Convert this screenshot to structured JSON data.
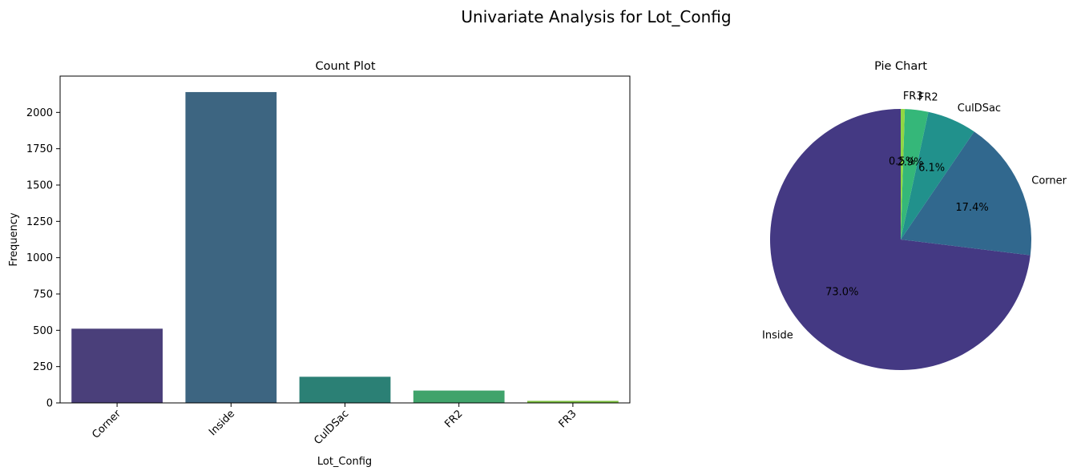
{
  "figure": {
    "suptitle": "Univariate Analysis for Lot_Config"
  },
  "chart_data": [
    {
      "type": "bar",
      "title": "Count Plot",
      "xlabel": "Lot_Config",
      "ylabel": "Frequency",
      "categories": [
        "Corner",
        "Inside",
        "CulDSac",
        "FR2",
        "FR3"
      ],
      "values": [
        511,
        2140,
        180,
        85,
        14
      ],
      "colors": [
        "#4a3f7a",
        "#3d6581",
        "#2b8075",
        "#40a36b",
        "#7cc03e"
      ],
      "ylim": [
        0,
        2250
      ],
      "yticks": [
        0,
        250,
        500,
        750,
        1000,
        1250,
        1500,
        1750,
        2000
      ],
      "xtick_rotation": 45,
      "grid": false
    },
    {
      "type": "pie",
      "title": "Pie Chart",
      "categories": [
        "Inside",
        "Corner",
        "CulDSac",
        "FR2",
        "FR3"
      ],
      "values": [
        73.0,
        17.4,
        6.1,
        2.9,
        0.5
      ],
      "labels": [
        "73.0%",
        "17.4%",
        "6.1%",
        "2.9%",
        "0.5%"
      ],
      "colors": [
        "#443983",
        "#31688e",
        "#21918c",
        "#35b779",
        "#90d743"
      ],
      "start_angle": 90,
      "direction": "counterclockwise"
    }
  ]
}
